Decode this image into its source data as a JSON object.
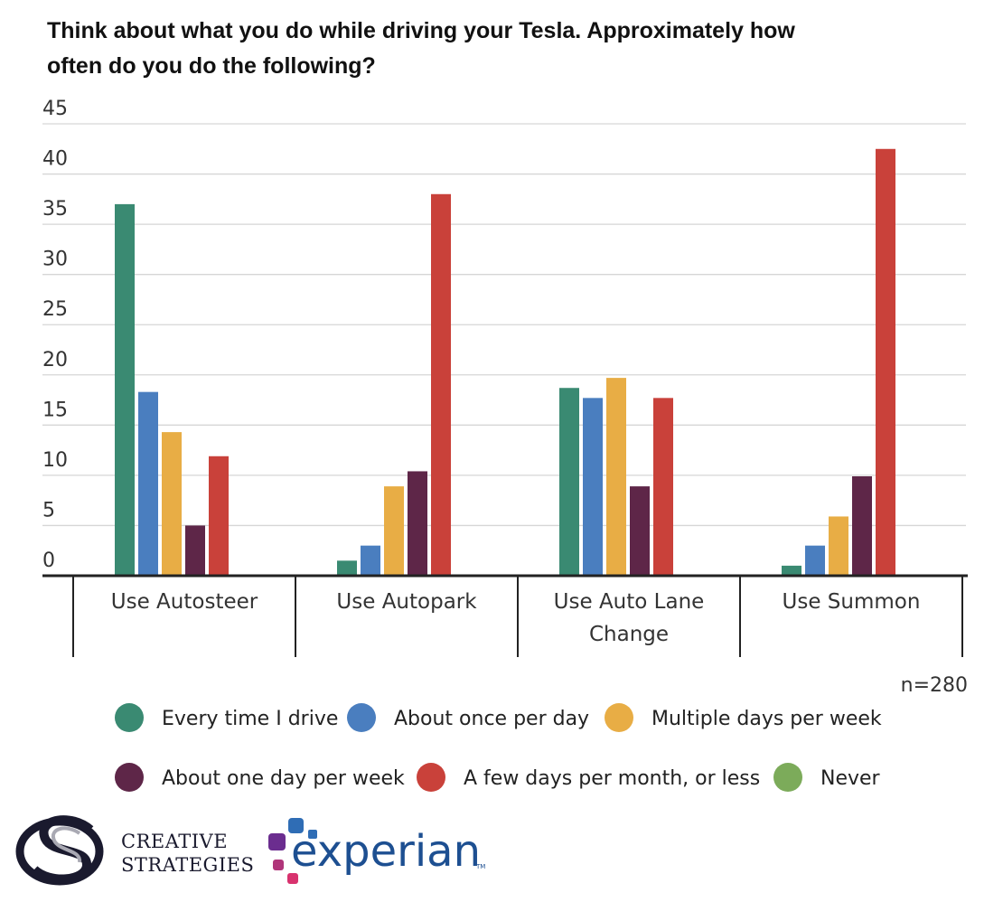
{
  "chart_data": {
    "type": "bar",
    "title_lines": [
      "Think about what you do while driving your Tesla.  Approximately how",
      "often do you do the following?"
    ],
    "categories": [
      [
        "Use Autosteer"
      ],
      [
        "Use Autopark"
      ],
      [
        "Use Auto Lane",
        "Change"
      ],
      [
        "Use Summon"
      ]
    ],
    "series": [
      {
        "name": "Every time I drive",
        "color": "#3a8a72",
        "values": [
          37,
          1.5,
          18.7,
          1
        ]
      },
      {
        "name": "About once per day",
        "color": "#4a7ebf",
        "values": [
          18.3,
          3,
          17.7,
          3
        ]
      },
      {
        "name": "Multiple days per week",
        "color": "#e8ad45",
        "values": [
          14.3,
          8.9,
          19.7,
          5.9
        ]
      },
      {
        "name": "About one day per week",
        "color": "#5e2648",
        "values": [
          5,
          10.4,
          8.9,
          9.9
        ]
      },
      {
        "name": "A few days per month, or less",
        "color": "#c9413a",
        "values": [
          11.9,
          38,
          17.7,
          42.5
        ]
      },
      {
        "name": "Never",
        "color": "#7cab5a",
        "values": [
          0,
          0,
          0,
          0
        ]
      }
    ],
    "y_ticks": [
      "0",
      "5",
      "10",
      "15",
      "20",
      "25",
      "30",
      "35",
      "40",
      "45"
    ],
    "ylim": [
      0,
      45
    ],
    "xlabel": "",
    "ylabel": "",
    "sample_note": "n=280",
    "legend_position": "bottom"
  },
  "logos": {
    "creative_strategies": [
      "CREATIVE",
      "STRATEGIES"
    ],
    "experian": "experian",
    "experian_tm": "TM"
  }
}
